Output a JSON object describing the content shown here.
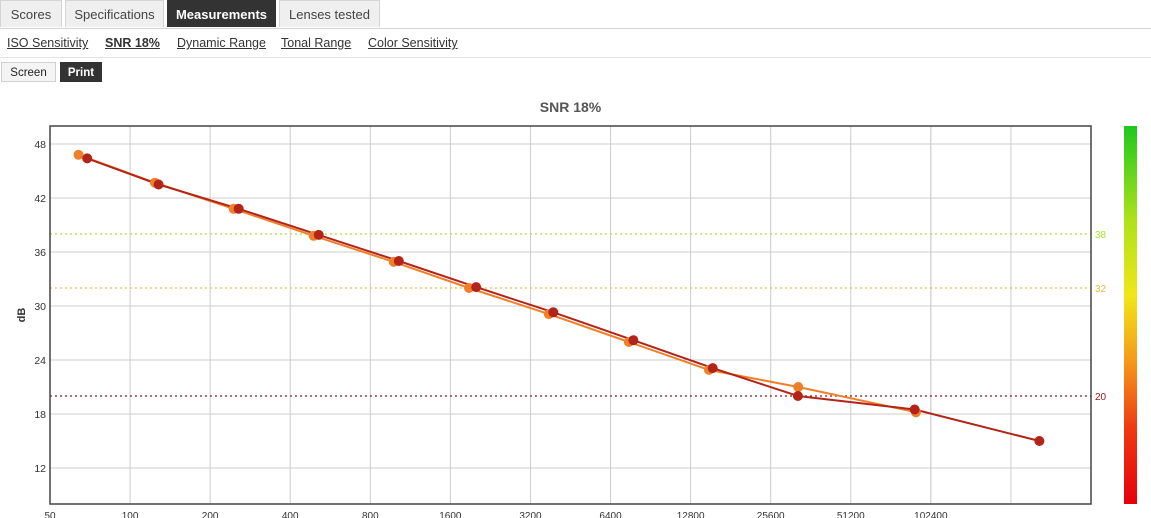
{
  "tabs": [
    {
      "label": "Scores",
      "active": false
    },
    {
      "label": "Specifications",
      "active": false
    },
    {
      "label": "Measurements",
      "active": true
    },
    {
      "label": "Lenses tested",
      "active": false
    }
  ],
  "subnav": [
    {
      "label": "ISO Sensitivity",
      "active": false
    },
    {
      "label": "SNR 18%",
      "active": true
    },
    {
      "label": "Dynamic Range",
      "active": false
    },
    {
      "label": "Tonal Range",
      "active": false
    },
    {
      "label": "Color Sensitivity",
      "active": false
    }
  ],
  "modes": {
    "screen": "Screen",
    "print": "Print",
    "selected": "Print"
  },
  "chart_data": {
    "type": "line",
    "title": "SNR 18%",
    "xlabel": "",
    "ylabel": "dB",
    "x_scale": "log2",
    "x_ticks": [
      "50",
      "100",
      "200",
      "400",
      "800",
      "1600",
      "3200",
      "6400",
      "12800",
      "25600",
      "51200",
      "102400"
    ],
    "x_range": [
      50,
      409600
    ],
    "y_ticks": [
      12,
      18,
      24,
      30,
      36,
      42,
      48
    ],
    "ylim": [
      8,
      50
    ],
    "grid": true,
    "reference_lines": [
      {
        "value": 38,
        "label": "38",
        "color": "#a6e22e"
      },
      {
        "value": 32,
        "label": "32",
        "color": "#e0c040"
      },
      {
        "value": 20,
        "label": "20",
        "color": "#8b1a1a"
      }
    ],
    "series": [
      {
        "color": "#f07f2a",
        "values": [
          [
            64,
            46.8
          ],
          [
            124,
            43.7
          ],
          [
            245,
            40.8
          ],
          [
            490,
            37.8
          ],
          [
            980,
            34.9
          ],
          [
            1880,
            32.0
          ],
          [
            3750,
            29.1
          ],
          [
            7500,
            26.0
          ],
          [
            15000,
            22.9
          ],
          [
            32500,
            21.0
          ],
          [
            90000,
            18.2
          ]
        ]
      },
      {
        "color": "#b22418",
        "values": [
          [
            69,
            46.4
          ],
          [
            128,
            43.5
          ],
          [
            256,
            40.8
          ],
          [
            512,
            37.9
          ],
          [
            1024,
            35.0
          ],
          [
            2000,
            32.1
          ],
          [
            3900,
            29.3
          ],
          [
            7800,
            26.2
          ],
          [
            15500,
            23.1
          ],
          [
            32400,
            20.0
          ],
          [
            89000,
            18.5
          ],
          [
            262000,
            15.0
          ]
        ]
      }
    ]
  }
}
